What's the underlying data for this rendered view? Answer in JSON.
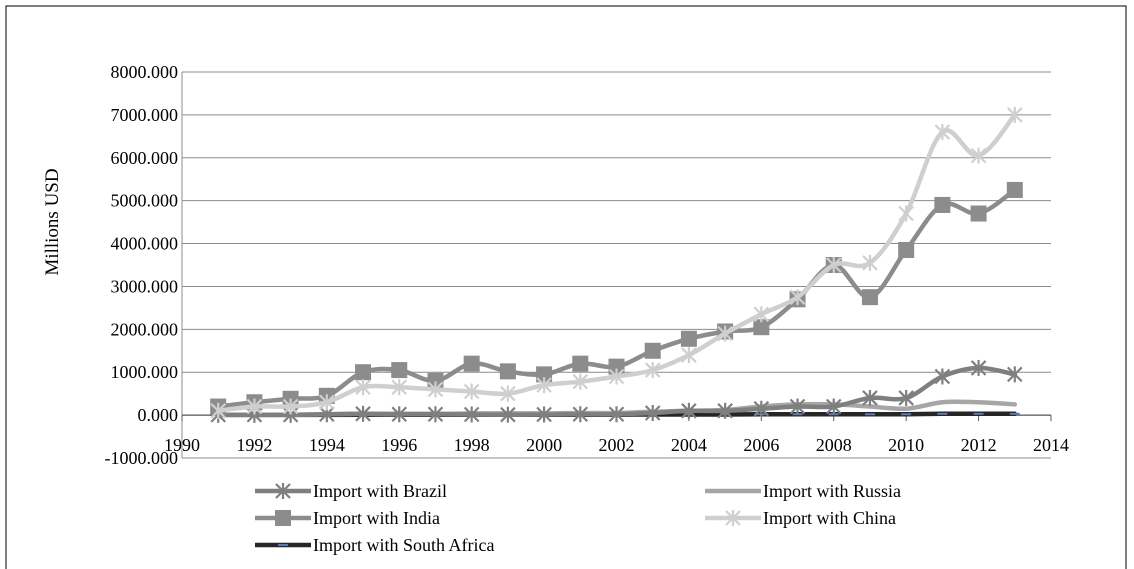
{
  "chart_data": {
    "type": "line",
    "title": "",
    "xlabel": "",
    "ylabel": "Millions USD",
    "xlim": [
      1990,
      2014
    ],
    "ylim": [
      -1000,
      8000
    ],
    "x_ticks": [
      "1990",
      "1992",
      "1994",
      "1996",
      "1998",
      "2000",
      "2002",
      "2004",
      "2006",
      "2008",
      "2010",
      "2012",
      "2014"
    ],
    "y_ticks": [
      "-1000.000",
      "0.000",
      "1000.000",
      "2000.000",
      "3000.000",
      "4000.000",
      "5000.000",
      "6000.000",
      "7000.000",
      "8000.000"
    ],
    "grid": "horizontal",
    "legend_position": "bottom",
    "x": [
      1991,
      1992,
      1993,
      1994,
      1995,
      1996,
      1997,
      1998,
      1999,
      2000,
      2001,
      2002,
      2003,
      2004,
      2005,
      2006,
      2007,
      2008,
      2009,
      2010,
      2011,
      2012,
      2013
    ],
    "series": [
      {
        "name": "Import with Brazil",
        "color": "#7f7f7f",
        "marker": "star",
        "values": [
          5,
          5,
          5,
          20,
          30,
          20,
          20,
          15,
          10,
          15,
          20,
          20,
          50,
          100,
          100,
          150,
          200,
          200,
          400,
          400,
          900,
          1100,
          950
        ]
      },
      {
        "name": "Import with Russia",
        "color": "#a6a6a6",
        "marker": "none",
        "values": [
          10,
          10,
          10,
          20,
          30,
          30,
          30,
          40,
          40,
          40,
          50,
          50,
          80,
          100,
          120,
          200,
          250,
          250,
          200,
          150,
          300,
          300,
          250
        ]
      },
      {
        "name": "Import with India",
        "color": "#8c8c8c",
        "marker": "square",
        "values": [
          200,
          300,
          380,
          450,
          1000,
          1050,
          800,
          1200,
          1020,
          950,
          1200,
          1130,
          1500,
          1780,
          1950,
          2050,
          2700,
          3500,
          2750,
          3850,
          4900,
          4700,
          5250
        ]
      },
      {
        "name": "Import with China",
        "color": "#cfcfcf",
        "marker": "star",
        "values": [
          100,
          200,
          200,
          300,
          650,
          650,
          600,
          550,
          500,
          700,
          780,
          900,
          1050,
          1400,
          1900,
          2350,
          2750,
          3500,
          3550,
          4700,
          6600,
          6050,
          7000
        ]
      },
      {
        "name": "Import with South Africa",
        "color": "#262626",
        "marker": "dash",
        "values": [
          5,
          5,
          5,
          5,
          10,
          10,
          10,
          10,
          10,
          10,
          10,
          10,
          15,
          15,
          15,
          20,
          20,
          20,
          20,
          20,
          30,
          30,
          30
        ]
      }
    ]
  }
}
